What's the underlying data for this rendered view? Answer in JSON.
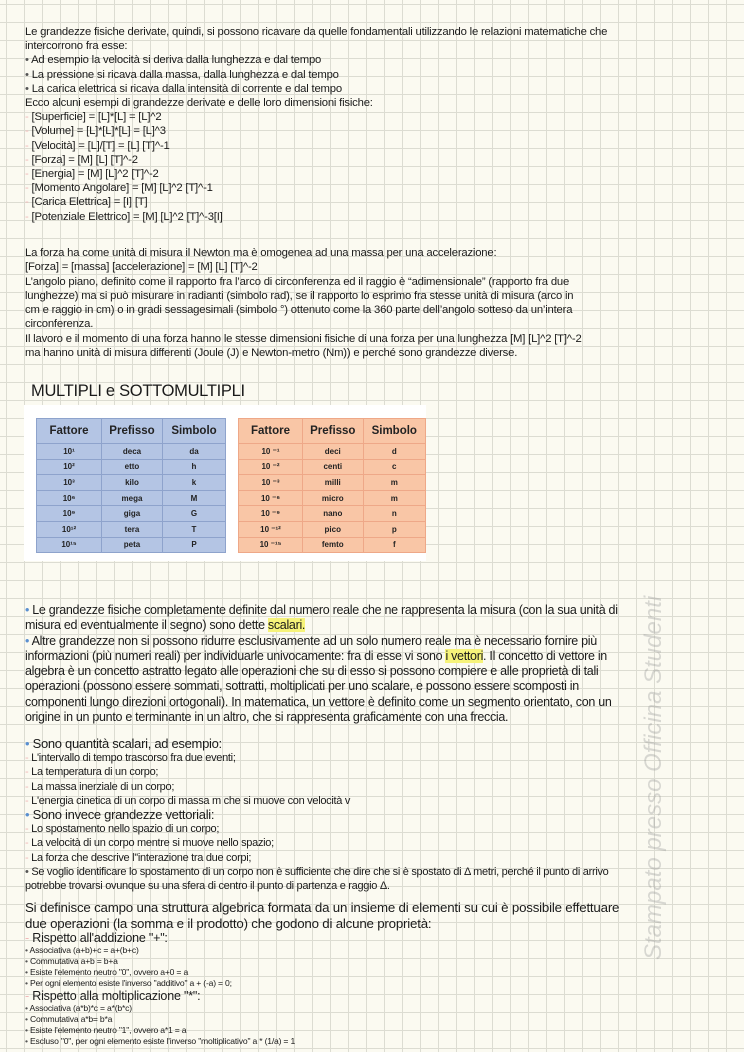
{
  "intro": {
    "lines": [
      "Le grandezze fisiche derivate, quindi, si possono ricavare da quelle fondamentali utilizzando le relazioni matematiche che",
      "intercorrono fra esse:"
    ],
    "bullets": [
      "Ad esempio la velocità si deriva dalla lunghezza e dal tempo",
      "La pressione si ricava dalla massa, dalla lunghezza e dal tempo",
      "La carica elettrica si ricava dalla intensità di corrente e dal tempo"
    ],
    "examples_intro": "Ecco alcuni esempi di grandezze derivate e delle loro dimensioni fisiche:",
    "examples": [
      "[Superficie] = [L]*[L] = [L]^2",
      "[Volume] = [L]*[L]*[L] = [L]^3",
      "[Velocità] = [L]/[T] = [L] [T]^-1",
      "[Forza] = [M] [L] [T]^-2",
      "[Energia] = [M] [L]^2 [T]^-2",
      "[Momento Angolare] = [M] [L]^2 [T]^-1",
      "[Carica Elettrica] = [I] [T]",
      "[Potenziale Elettrico] = [M] [L]^2 [T]^-3[I]"
    ]
  },
  "forza": {
    "lines": [
      "La forza ha come unità di misura il Newton ma è omogenea ad una massa per una accelerazione:",
      "[Forza] = [massa] [accelerazione] = [M] [L] [T]^-2",
      "L’angolo piano, definito come il rapporto fra l’arco di circonferenza ed il raggio è “adimensionale” (rapporto fra due",
      "lunghezze) ma si può misurare in radianti (simbolo rad), se il rapporto lo esprimo fra stesse unità di misura (arco in",
      "cm e raggio in cm) o in gradi sessagesimali (simbolo °) ottenuto come la 360 parte dell’angolo sotteso da un’intera",
      "circonferenza.",
      "Il lavoro e il momento di una forza hanno le stesse dimensioni fisiche di una forza per una lunghezza [M] [L]^2 [T]^-2",
      "ma hanno unità di misura differenti (Joule (J) e Newton-metro (Nm)) e perché sono grandezze diverse."
    ]
  },
  "multipli": {
    "title": "MULTIPLI e SOTTOMULTIPLI",
    "headers": [
      "Fattore",
      "Prefisso",
      "Simbolo"
    ],
    "multipli": [
      [
        "10¹",
        "deca",
        "da"
      ],
      [
        "10²",
        "etto",
        "h"
      ],
      [
        "10³",
        "kilo",
        "k"
      ],
      [
        "10⁶",
        "mega",
        "M"
      ],
      [
        "10⁹",
        "giga",
        "G"
      ],
      [
        "10¹²",
        "tera",
        "T"
      ],
      [
        "10¹⁵",
        "peta",
        "P"
      ]
    ],
    "sottomultipli": [
      [
        "10 ⁻¹",
        "deci",
        "d"
      ],
      [
        "10 ⁻²",
        "centi",
        "c"
      ],
      [
        "10 ⁻³",
        "milli",
        "m"
      ],
      [
        "10 ⁻⁶",
        "micro",
        "m"
      ],
      [
        "10 ⁻⁹",
        "nano",
        "n"
      ],
      [
        "10 ⁻¹²",
        "pico",
        "p"
      ],
      [
        "10 ⁻¹⁵",
        "femto",
        "f"
      ]
    ],
    "colors": {
      "multipli": "#b4c5e4",
      "sottomultipli": "#f9c6a6"
    }
  },
  "scalari": {
    "p1a": "Le grandezze fisiche completamente definite dal numero reale che ne rappresenta la misura (con la sua unità di",
    "p1b": "misura ed eventualmente il segno) sono dette ",
    "p1hl": "scalari.",
    "p2a": "Altre grandezze non si possono ridurre esclusivamente ad un solo numero reale ma è necessario fornire più",
    "p2b": "informazioni (più numeri reali) per individuarle univocamente: fra di esse vi sono ",
    "p2hl": "i vettori",
    "p2c": ". Il concetto di vettore in",
    "p2rest": [
      "algebra è un concetto astratto legato alle operazioni che su di esso si possono compiere e alle proprietà di tali",
      "operazioni (possono essere sommati, sottratti, moltiplicati per uno scalare, e possono essere scomposti in",
      "componenti lungo direzioni ortogonali). In matematica, un vettore è definito come un segmento orientato, con un",
      "origine in un punto e terminante in un altro, che si rappresenta graficamente con una freccia."
    ],
    "highlight_color": "#f6f37a"
  },
  "esempi": {
    "scalari_title": "Sono quantità scalari, ad esempio:",
    "scalari": [
      "L'intervallo di tempo trascorso fra due eventi;",
      "La temperatura di un corpo;",
      "La massa inerziale di un corpo;",
      "L'energia cinetica di un corpo di massa m che si muove con velocità v"
    ],
    "vettoriali_title": "Sono invece grandezze vettoriali:",
    "vettoriali": [
      "Lo spostamento nello spazio di un corpo;",
      "La velocità di un corpo mentre si muove nello spazio;",
      "La forza che descrive l''interazione tra due corpi;"
    ],
    "nota": [
      "Se voglio identificare lo spostamento di un corpo non è sufficiente che dire che si è spostato di Δ metri, perché il punto di arrivo",
      "potrebbe trovarsi ovunque su una sfera di centro il punto di partenza e raggio Δ."
    ]
  },
  "campo": {
    "lines": [
      "Si definisce campo una struttura algebrica formata da un insieme di elementi su cui è possibile effettuare",
      "due operazioni (la somma e il prodotto) che godono di alcune proprietà:"
    ],
    "add_title": "Rispetto all'addizione \"+\":",
    "add": [
      "Associativa (a+b)+c = a+(b+c)",
      "Commutativa a+b = b+a",
      "Esiste l'elemento neutro \"0\", ovvero a+0 = a",
      "Per ogni elemento esiste l'inverso \"additivo\" a + (-a) = 0;"
    ],
    "mul_title": "Rispetto alla moltiplicazione \"*\":",
    "mul": [
      "Associativa (a*b)*c = a*(b*c)",
      "Commutativa a*b= b*a",
      "Esiste l'elemento neutro \"1\", ovvero a*1 = a",
      "Escluso \"0\", per ogni elemento esiste l'inverso \"moltiplicativo\" a * (1/a) = 1"
    ]
  },
  "watermark": "Stampato presso Officina Studenti"
}
